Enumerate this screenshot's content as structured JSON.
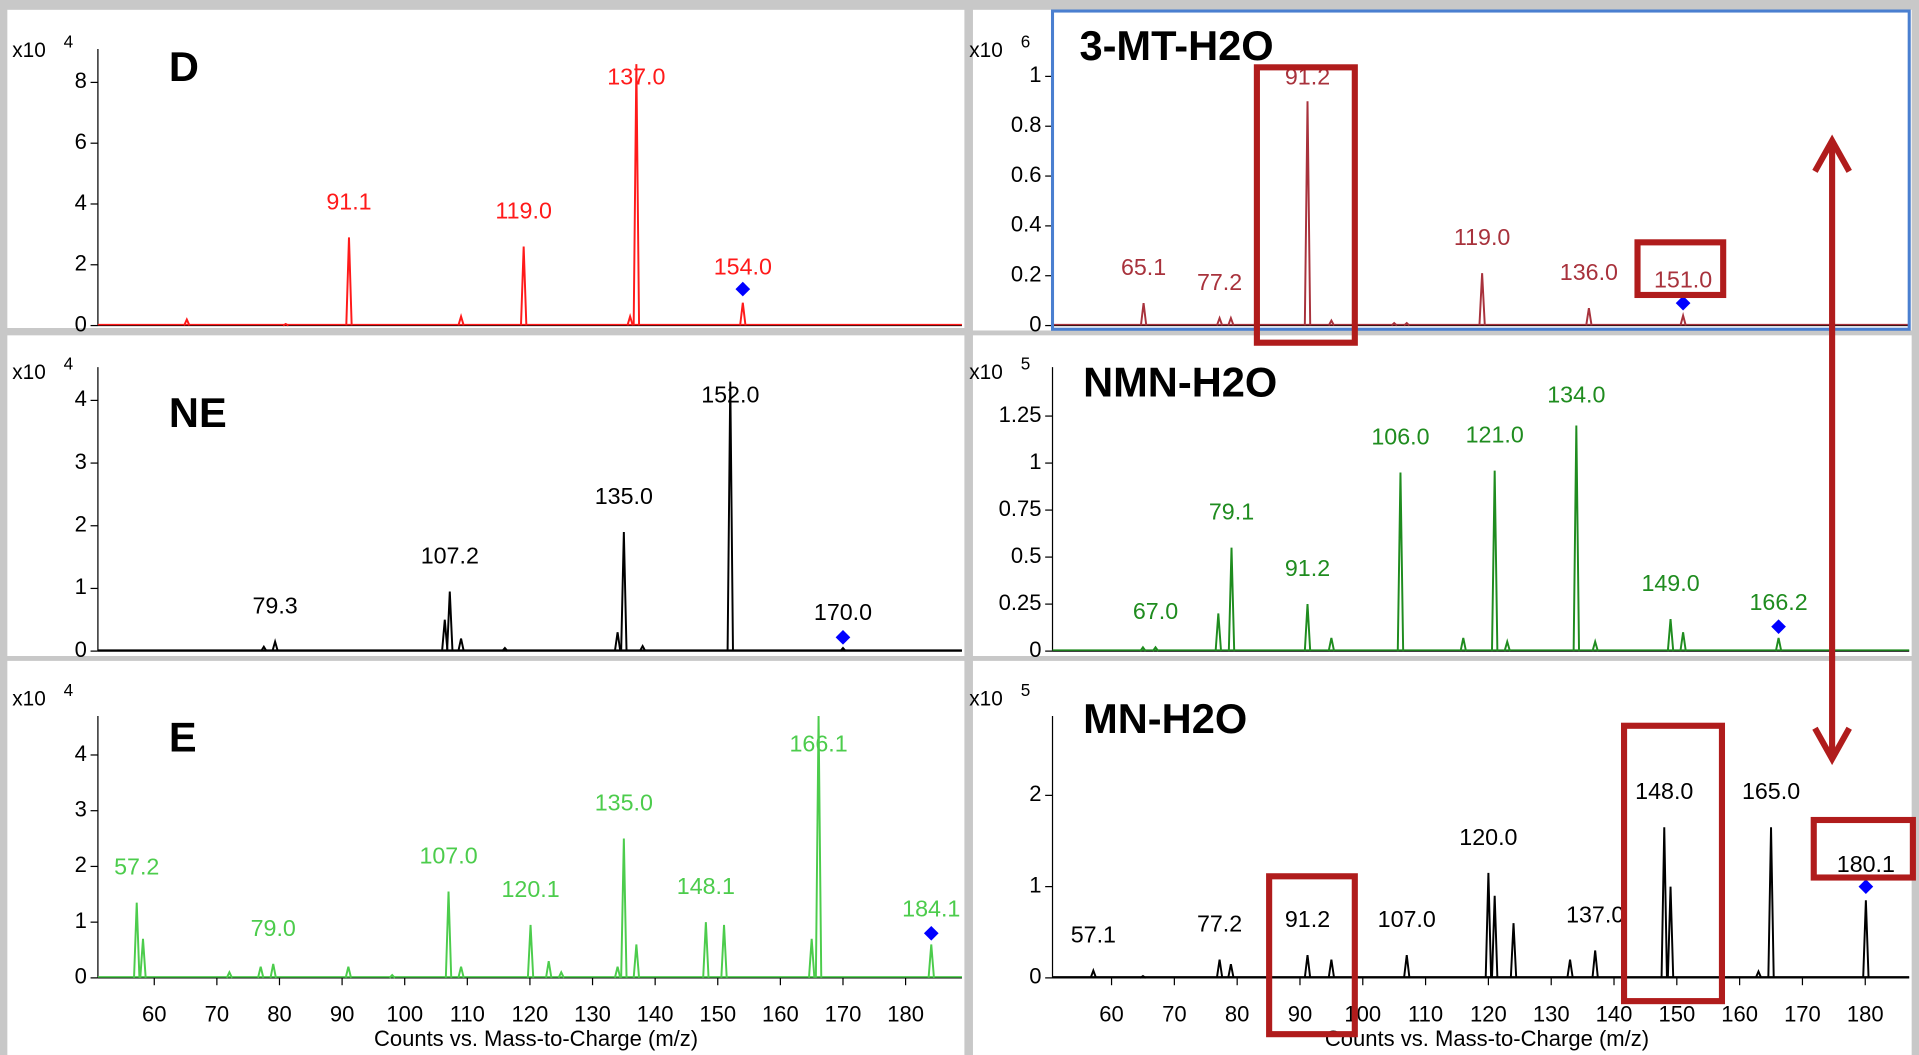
{
  "chart_data": [
    {
      "type": "spectrum",
      "title": "D",
      "color": "#ff1a1a",
      "scale_label": "x10",
      "scale_exponent": "4",
      "peaks": {
        "x": [
          65.2,
          81,
          91.1,
          109,
          119.0,
          136,
          137.0,
          154.0
        ],
        "values": [
          0.2,
          0.05,
          2.9,
          0.3,
          2.6,
          0.3,
          8.6,
          0.75
        ]
      },
      "precursor": {
        "x": 154.0,
        "y": 1.2,
        "color": "#0000ff"
      },
      "peak_labels": [
        {
          "x": 91.1,
          "label": "91.1"
        },
        {
          "x": 119.0,
          "label": "119.0"
        },
        {
          "x": 137.0,
          "label": "137.0"
        },
        {
          "x": 154.0,
          "label": "154.0"
        }
      ],
      "xlim": [
        51,
        189
      ],
      "ylim": [
        0,
        9.1
      ],
      "yticks": [
        0,
        2,
        4,
        6,
        8
      ]
    },
    {
      "type": "spectrum",
      "title": "NE",
      "color": "#000000",
      "scale_label": "x10",
      "scale_exponent": "4",
      "peaks": {
        "x": [
          77.5,
          79.3,
          106.4,
          107.2,
          109,
          116,
          134,
          135.0,
          138,
          152.0,
          170.0
        ],
        "values": [
          0.07,
          0.15,
          0.5,
          0.95,
          0.2,
          0.05,
          0.3,
          1.9,
          0.08,
          4.3,
          0.05
        ]
      },
      "precursor": {
        "x": 170.0,
        "y": 0.22,
        "color": "#0000ff"
      },
      "peak_labels": [
        {
          "x": 79.3,
          "label": "79.3"
        },
        {
          "x": 107.2,
          "label": "107.2"
        },
        {
          "x": 135.0,
          "label": "135.0"
        },
        {
          "x": 152.0,
          "label": "152.0"
        },
        {
          "x": 170.0,
          "label": "170.0"
        }
      ],
      "xlim": [
        51,
        189
      ],
      "ylim": [
        0,
        4.53
      ],
      "yticks": [
        0,
        1,
        2,
        3,
        4
      ]
    },
    {
      "type": "spectrum",
      "title": "E",
      "color": "#4ccc4c",
      "scale_label": "x10",
      "scale_exponent": "4",
      "peaks": {
        "x": [
          57.2,
          58.2,
          72,
          77,
          79.0,
          91,
          98,
          107.0,
          109,
          120.1,
          123,
          125,
          134,
          135.0,
          137,
          148.1,
          151,
          165,
          166.1,
          184.1
        ],
        "values": [
          1.35,
          0.7,
          0.1,
          0.2,
          0.25,
          0.2,
          0.05,
          1.55,
          0.2,
          0.95,
          0.3,
          0.1,
          0.2,
          2.5,
          0.6,
          1.0,
          0.95,
          0.7,
          4.7,
          0.6
        ]
      },
      "precursor": {
        "x": 184.1,
        "y": 0.8,
        "color": "#0000ff"
      },
      "peak_labels": [
        {
          "x": 57.2,
          "label": "57.2"
        },
        {
          "x": 79.0,
          "label": "79.0"
        },
        {
          "x": 107.0,
          "label": "107.0"
        },
        {
          "x": 120.1,
          "label": "120.1"
        },
        {
          "x": 135.0,
          "label": "135.0"
        },
        {
          "x": 148.1,
          "label": "148.1"
        },
        {
          "x": 166.1,
          "label": "166.1"
        },
        {
          "x": 184.1,
          "label": "184.1"
        }
      ],
      "xlim": [
        51,
        189
      ],
      "ylim": [
        0,
        4.7
      ],
      "yticks": [
        0,
        1,
        2,
        3,
        4
      ],
      "xticks": [
        60,
        70,
        80,
        90,
        100,
        110,
        120,
        130,
        140,
        150,
        160,
        170,
        180
      ],
      "xlabel": "Counts vs. Mass-to-Charge (m/z)"
    },
    {
      "type": "spectrum",
      "title": "3-MT-H2O",
      "color": "#a8323c",
      "scale_label": "x10",
      "scale_exponent": "6",
      "peaks": {
        "x": [
          65.1,
          77.2,
          79,
          91.2,
          95,
          105,
          107,
          119.0,
          136.0,
          151.0
        ],
        "values": [
          0.09,
          0.03,
          0.03,
          0.9,
          0.02,
          0.01,
          0.01,
          0.21,
          0.07,
          0.04
        ]
      },
      "precursor": {
        "x": 151.0,
        "y": 0.09,
        "color": "#0000ff"
      },
      "peak_labels": [
        {
          "x": 65.1,
          "label": "65.1"
        },
        {
          "x": 77.2,
          "label": "77.2"
        },
        {
          "x": 91.2,
          "label": "91.2"
        },
        {
          "x": 119.0,
          "label": "119.0"
        },
        {
          "x": 136.0,
          "label": "136.0"
        },
        {
          "x": 151.0,
          "label": "151.0"
        }
      ],
      "xlim": [
        50.6,
        187
      ],
      "ylim": [
        0,
        1.11
      ],
      "yticks": [
        0,
        0.2,
        0.4,
        0.6,
        0.8,
        1
      ]
    },
    {
      "type": "spectrum",
      "title": "NMN-H2O",
      "color": "#1f8c1f",
      "scale_label": "x10",
      "scale_exponent": "5",
      "peaks": {
        "x": [
          65,
          67.0,
          77,
          79.1,
          91.2,
          95,
          106.0,
          116,
          121.0,
          123,
          134.0,
          137,
          149.0,
          151,
          166.2
        ],
        "values": [
          0.02,
          0.02,
          0.2,
          0.55,
          0.25,
          0.07,
          0.95,
          0.07,
          0.96,
          0.05,
          1.2,
          0.05,
          0.17,
          0.1,
          0.07
        ]
      },
      "precursor": {
        "x": 166.2,
        "y": 0.13,
        "color": "#0000ff"
      },
      "peak_labels": [
        {
          "x": 67.0,
          "label": "67.0"
        },
        {
          "x": 79.1,
          "label": "79.1"
        },
        {
          "x": 91.2,
          "label": "91.2"
        },
        {
          "x": 106.0,
          "label": "106.0"
        },
        {
          "x": 121.0,
          "label": "121.0"
        },
        {
          "x": 134.0,
          "label": "134.0"
        },
        {
          "x": 149.0,
          "label": "149.0"
        },
        {
          "x": 166.2,
          "label": "166.2"
        }
      ],
      "xlim": [
        50.6,
        187
      ],
      "ylim": [
        0,
        1.51
      ],
      "yticks": [
        0,
        0.25,
        0.5,
        0.75,
        1,
        1.25
      ]
    },
    {
      "type": "spectrum",
      "title": "MN-H2O",
      "color": "#000000",
      "scale_label": "x10",
      "scale_exponent": "5",
      "peaks": {
        "x": [
          57.1,
          65,
          77.2,
          79,
          91.2,
          95,
          107.0,
          120.0,
          121,
          124,
          133,
          137.0,
          148.0,
          149,
          163,
          165.0,
          180.1
        ],
        "values": [
          0.08,
          0.02,
          0.2,
          0.15,
          0.25,
          0.2,
          0.25,
          1.15,
          0.9,
          0.6,
          0.2,
          0.3,
          1.65,
          1.0,
          0.07,
          1.65,
          0.85
        ]
      },
      "precursor": {
        "x": 180.1,
        "y": 1.0,
        "color": "#0000ff"
      },
      "peak_labels": [
        {
          "x": 57.1,
          "label": "57.1"
        },
        {
          "x": 77.2,
          "label": "77.2"
        },
        {
          "x": 91.2,
          "label": "91.2"
        },
        {
          "x": 107.0,
          "label": "107.0"
        },
        {
          "x": 120.0,
          "label": "120.0"
        },
        {
          "x": 137.0,
          "label": "137.0"
        },
        {
          "x": 148.0,
          "label": "148.0"
        },
        {
          "x": 165.0,
          "label": "165.0"
        },
        {
          "x": 180.1,
          "label": "180.1"
        }
      ],
      "xlim": [
        50.6,
        187
      ],
      "ylim": [
        0,
        2.87
      ],
      "yticks": [
        0,
        1,
        2
      ],
      "xticks": [
        60,
        70,
        80,
        90,
        100,
        110,
        120,
        130,
        140,
        150,
        160,
        170,
        180
      ],
      "xlabel": "Counts vs. Mass-to-Charge (m/z)"
    }
  ]
}
